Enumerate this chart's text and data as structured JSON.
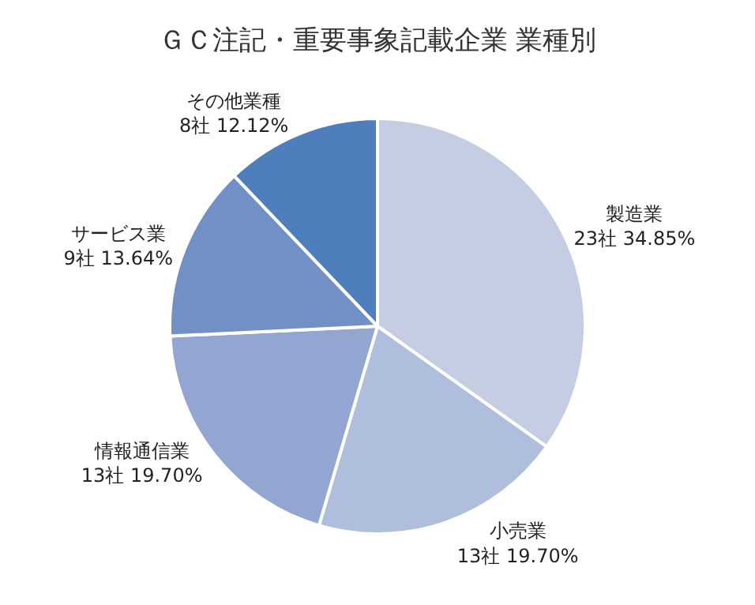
{
  "chart_data": {
    "type": "pie",
    "title": "ＧＣ注記・重要事象記載企業 業種別",
    "categories": [
      "製造業",
      "小売業",
      "情報通信業",
      "サービス業",
      "その他業種"
    ],
    "values": [
      23,
      13,
      13,
      9,
      8
    ],
    "value_labels": [
      "23社 34.85%",
      "13社 19.70%",
      "13社 19.70%",
      "9社 13.64%",
      "8社 12.12%"
    ],
    "colors": [
      "#c5cde2",
      "#afbedc",
      "#93a6d2",
      "#7191c6",
      "#4f7ebd"
    ],
    "legend": false
  }
}
